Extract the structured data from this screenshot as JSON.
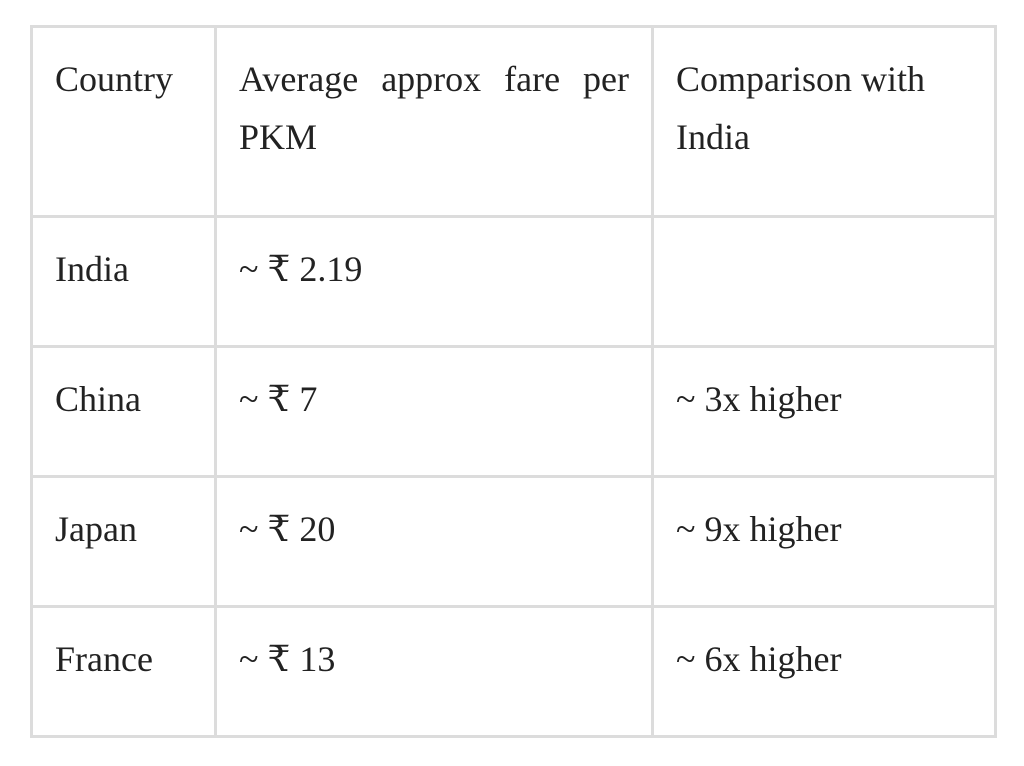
{
  "table": {
    "header": [
      "Country",
      "Average approx fare per PKM",
      "Comparison with India"
    ],
    "rows": [
      [
        "India",
        "~ ₹ 2.19",
        null
      ],
      [
        "China",
        "~ ₹ 7",
        "~ 3x higher"
      ],
      [
        "Japan",
        "~ ₹ 20",
        "~ 9x higher"
      ],
      [
        "France",
        "~ ₹ 13",
        "~ 6x higher"
      ]
    ]
  }
}
